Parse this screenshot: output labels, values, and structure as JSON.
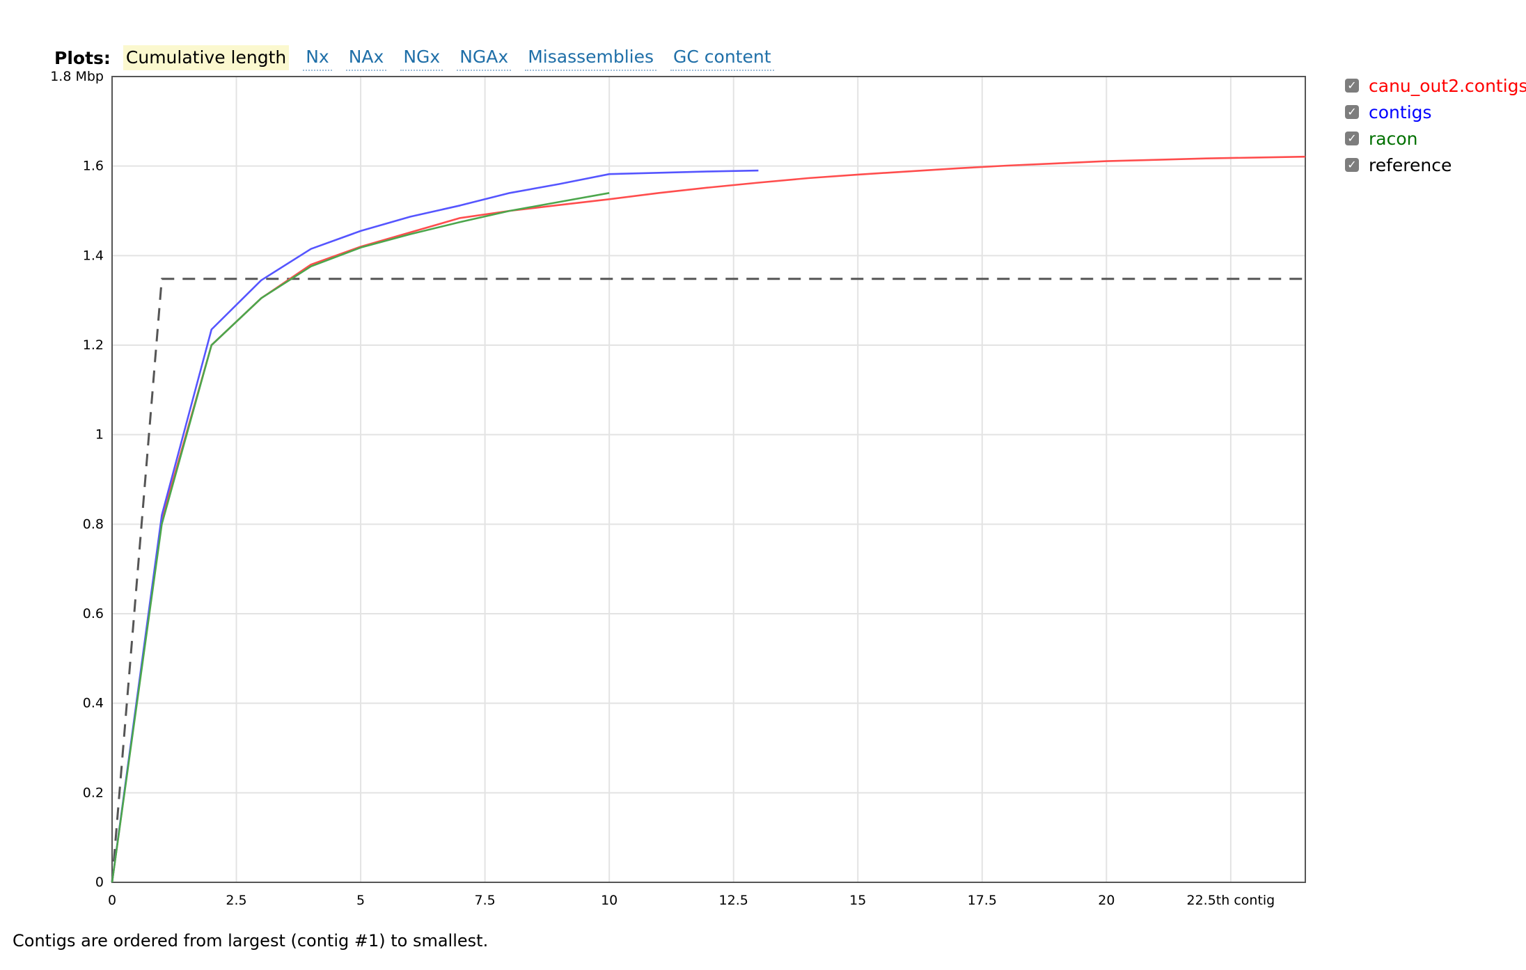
{
  "plots_nav": {
    "title": "Plots:",
    "tabs": [
      {
        "label": "Cumulative length",
        "active": true
      },
      {
        "label": "Nx",
        "active": false
      },
      {
        "label": "NAx",
        "active": false
      },
      {
        "label": "NGx",
        "active": false
      },
      {
        "label": "NGAx",
        "active": false
      },
      {
        "label": "Misassemblies",
        "active": false
      },
      {
        "label": "GC content",
        "active": false
      }
    ]
  },
  "legend": [
    {
      "label": "canu_out2.contigs",
      "color": "#ff0000",
      "checked": true
    },
    {
      "label": "contigs",
      "color": "#0000ff",
      "checked": true
    },
    {
      "label": "racon",
      "color": "#007000",
      "checked": true
    },
    {
      "label": "reference",
      "color": "#000000",
      "checked": true
    }
  ],
  "footer_note": "Contigs are ordered from largest (contig #1) to smallest.",
  "chart_data": {
    "type": "line",
    "xlabel": "contig",
    "ylabel": "Mbp",
    "xlim": [
      0,
      24
    ],
    "ylim": [
      0,
      1.8
    ],
    "x_ticks": [
      {
        "value": 0,
        "label": "0"
      },
      {
        "value": 2.5,
        "label": "2.5"
      },
      {
        "value": 5,
        "label": "5"
      },
      {
        "value": 7.5,
        "label": "7.5"
      },
      {
        "value": 10,
        "label": "10"
      },
      {
        "value": 12.5,
        "label": "12.5"
      },
      {
        "value": 15,
        "label": "15"
      },
      {
        "value": 17.5,
        "label": "17.5"
      },
      {
        "value": 20,
        "label": "20"
      },
      {
        "value": 22.5,
        "label": "22.5th contig"
      }
    ],
    "y_ticks": [
      {
        "value": 0,
        "label": "0"
      },
      {
        "value": 0.2,
        "label": "0.2"
      },
      {
        "value": 0.4,
        "label": "0.4"
      },
      {
        "value": 0.6,
        "label": "0.6"
      },
      {
        "value": 0.8,
        "label": "0.8"
      },
      {
        "value": 1,
        "label": "1"
      },
      {
        "value": 1.2,
        "label": "1.2"
      },
      {
        "value": 1.4,
        "label": "1.4"
      },
      {
        "value": 1.6,
        "label": "1.6"
      },
      {
        "value": 1.8,
        "label": "1.8 Mbp"
      }
    ],
    "grid": true,
    "series": [
      {
        "name": "reference",
        "color": "#555555",
        "dashed": true,
        "points": [
          [
            0,
            0
          ],
          [
            1,
            1.348
          ],
          [
            24,
            1.348
          ]
        ]
      },
      {
        "name": "canu_out2.contigs",
        "color": "#ff4d4d",
        "dashed": false,
        "points": [
          [
            0,
            0
          ],
          [
            1,
            0.81
          ],
          [
            2,
            1.2
          ],
          [
            3,
            1.305
          ],
          [
            4,
            1.38
          ],
          [
            5,
            1.42
          ],
          [
            6,
            1.452
          ],
          [
            7,
            1.484
          ],
          [
            8,
            1.5
          ],
          [
            9,
            1.513
          ],
          [
            10,
            1.526
          ],
          [
            11,
            1.54
          ],
          [
            12,
            1.552
          ],
          [
            13,
            1.563
          ],
          [
            14,
            1.573
          ],
          [
            15,
            1.581
          ],
          [
            16,
            1.588
          ],
          [
            17,
            1.595
          ],
          [
            18,
            1.601
          ],
          [
            19,
            1.606
          ],
          [
            20,
            1.611
          ],
          [
            21,
            1.614
          ],
          [
            22,
            1.617
          ],
          [
            23,
            1.619
          ],
          [
            24,
            1.621
          ]
        ]
      },
      {
        "name": "contigs",
        "color": "#5555ff",
        "dashed": false,
        "points": [
          [
            0,
            0
          ],
          [
            1,
            0.82
          ],
          [
            2,
            1.235
          ],
          [
            3,
            1.345
          ],
          [
            4,
            1.415
          ],
          [
            5,
            1.455
          ],
          [
            6,
            1.487
          ],
          [
            7,
            1.512
          ],
          [
            8,
            1.54
          ],
          [
            9,
            1.56
          ],
          [
            10,
            1.582
          ],
          [
            11,
            1.585
          ],
          [
            12,
            1.588
          ],
          [
            13,
            1.59
          ]
        ]
      },
      {
        "name": "racon",
        "color": "#4ca64c",
        "dashed": false,
        "points": [
          [
            0,
            0
          ],
          [
            1,
            0.8
          ],
          [
            2,
            1.2
          ],
          [
            3,
            1.305
          ],
          [
            4,
            1.376
          ],
          [
            5,
            1.418
          ],
          [
            6,
            1.448
          ],
          [
            7,
            1.475
          ],
          [
            8,
            1.5
          ],
          [
            9,
            1.52
          ],
          [
            10,
            1.54
          ]
        ]
      }
    ]
  }
}
